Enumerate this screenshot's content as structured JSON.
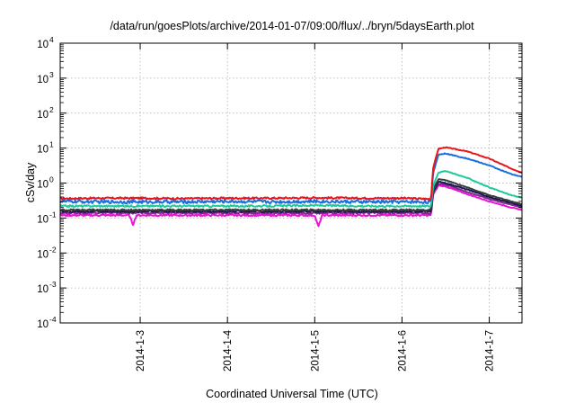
{
  "chart_data": {
    "type": "line",
    "title": "/data/run/goesPlots/archive/2014-01-07/09:00/flux/../bryn/5daysEarth.plot",
    "xlabel": "Coordinated Universal Time (UTC)",
    "ylabel": "cSv/day",
    "yscale": "log",
    "ylim": [
      0.0001,
      10000
    ],
    "xlim": [
      "2014-01-02 02:00",
      "2014-01-07 09:00"
    ],
    "grid": true,
    "y_ticks": [
      {
        "base": "10",
        "exp": "-4",
        "value": 0.0001
      },
      {
        "base": "10",
        "exp": "-3",
        "value": 0.001
      },
      {
        "base": "10",
        "exp": "-2",
        "value": 0.01
      },
      {
        "base": "10",
        "exp": "-1",
        "value": 0.1
      },
      {
        "base": "10",
        "exp": "0",
        "value": 1
      },
      {
        "base": "10",
        "exp": "1",
        "value": 10
      },
      {
        "base": "10",
        "exp": "2",
        "value": 100
      },
      {
        "base": "10",
        "exp": "3",
        "value": 1000
      },
      {
        "base": "10",
        "exp": "4",
        "value": 10000
      }
    ],
    "x_ticks": [
      {
        "label": "2014-1-3",
        "value": "2014-01-03 00:00"
      },
      {
        "label": "2014-1-4",
        "value": "2014-01-04 00:00"
      },
      {
        "label": "2014-1-5",
        "value": "2014-01-05 00:00"
      },
      {
        "label": "2014-1-6",
        "value": "2014-01-06 00:00"
      },
      {
        "label": "2014-1-7",
        "value": "2014-01-07 00:00"
      }
    ],
    "series": [
      {
        "color": "#e8141c",
        "points": [
          [
            "2014-01-02 02:00",
            0.36
          ],
          [
            "2014-01-02 12:00",
            0.37
          ],
          [
            "2014-01-03 00:00",
            0.37
          ],
          [
            "2014-01-03 12:00",
            0.36
          ],
          [
            "2014-01-04 00:00",
            0.37
          ],
          [
            "2014-01-04 12:00",
            0.37
          ],
          [
            "2014-01-05 00:00",
            0.38
          ],
          [
            "2014-01-05 12:00",
            0.37
          ],
          [
            "2014-01-06 00:00",
            0.37
          ],
          [
            "2014-01-06 08:00",
            0.35
          ],
          [
            "2014-01-06 08:30",
            2.5
          ],
          [
            "2014-01-06 10:00",
            9.5
          ],
          [
            "2014-01-06 12:00",
            10.5
          ],
          [
            "2014-01-06 18:00",
            8.0
          ],
          [
            "2014-01-07 00:00",
            5.0
          ],
          [
            "2014-01-07 06:00",
            2.6
          ],
          [
            "2014-01-07 09:00",
            2.0
          ]
        ]
      },
      {
        "color": "#1a6fe0",
        "points": [
          [
            "2014-01-02 02:00",
            0.3
          ],
          [
            "2014-01-02 12:00",
            0.29
          ],
          [
            "2014-01-03 00:00",
            0.29
          ],
          [
            "2014-01-03 12:00",
            0.29
          ],
          [
            "2014-01-04 00:00",
            0.3
          ],
          [
            "2014-01-04 12:00",
            0.29
          ],
          [
            "2014-01-05 00:00",
            0.3
          ],
          [
            "2014-01-05 12:00",
            0.29
          ],
          [
            "2014-01-06 00:00",
            0.29
          ],
          [
            "2014-01-06 08:00",
            0.29
          ],
          [
            "2014-01-06 08:30",
            1.8
          ],
          [
            "2014-01-06 10:00",
            6.5
          ],
          [
            "2014-01-06 12:00",
            7.0
          ],
          [
            "2014-01-06 18:00",
            5.0
          ],
          [
            "2014-01-07 00:00",
            3.2
          ],
          [
            "2014-01-07 06:00",
            1.8
          ],
          [
            "2014-01-07 09:00",
            1.5
          ]
        ]
      },
      {
        "color": "#1ec99a",
        "points": [
          [
            "2014-01-02 02:00",
            0.22
          ],
          [
            "2014-01-02 12:00",
            0.22
          ],
          [
            "2014-01-03 00:00",
            0.22
          ],
          [
            "2014-01-03 12:00",
            0.22
          ],
          [
            "2014-01-04 00:00",
            0.22
          ],
          [
            "2014-01-04 12:00",
            0.22
          ],
          [
            "2014-01-05 00:00",
            0.23
          ],
          [
            "2014-01-05 12:00",
            0.22
          ],
          [
            "2014-01-06 00:00",
            0.22
          ],
          [
            "2014-01-06 08:00",
            0.22
          ],
          [
            "2014-01-06 08:30",
            0.8
          ],
          [
            "2014-01-06 10:00",
            2.0
          ],
          [
            "2014-01-06 12:00",
            2.2
          ],
          [
            "2014-01-06 18:00",
            1.4
          ],
          [
            "2014-01-07 00:00",
            0.75
          ],
          [
            "2014-01-07 06:00",
            0.45
          ],
          [
            "2014-01-07 09:00",
            0.38
          ]
        ]
      },
      {
        "color": "#3d3d3d",
        "points": [
          [
            "2014-01-02 02:00",
            0.17
          ],
          [
            "2014-01-02 12:00",
            0.17
          ],
          [
            "2014-01-03 00:00",
            0.17
          ],
          [
            "2014-01-03 12:00",
            0.17
          ],
          [
            "2014-01-04 00:00",
            0.17
          ],
          [
            "2014-01-04 12:00",
            0.17
          ],
          [
            "2014-01-05 00:00",
            0.17
          ],
          [
            "2014-01-05 12:00",
            0.17
          ],
          [
            "2014-01-06 00:00",
            0.17
          ],
          [
            "2014-01-06 08:00",
            0.17
          ],
          [
            "2014-01-06 08:30",
            0.6
          ],
          [
            "2014-01-06 10:00",
            1.3
          ],
          [
            "2014-01-06 12:00",
            1.2
          ],
          [
            "2014-01-06 18:00",
            0.75
          ],
          [
            "2014-01-07 00:00",
            0.45
          ],
          [
            "2014-01-07 06:00",
            0.3
          ],
          [
            "2014-01-07 09:00",
            0.25
          ]
        ]
      },
      {
        "color": "#17174d",
        "points": [
          [
            "2014-01-02 02:00",
            0.155
          ],
          [
            "2014-01-02 12:00",
            0.155
          ],
          [
            "2014-01-03 00:00",
            0.155
          ],
          [
            "2014-01-03 12:00",
            0.155
          ],
          [
            "2014-01-04 00:00",
            0.155
          ],
          [
            "2014-01-04 12:00",
            0.155
          ],
          [
            "2014-01-05 00:00",
            0.155
          ],
          [
            "2014-01-05 12:00",
            0.155
          ],
          [
            "2014-01-06 00:00",
            0.155
          ],
          [
            "2014-01-06 08:00",
            0.155
          ],
          [
            "2014-01-06 08:30",
            0.55
          ],
          [
            "2014-01-06 10:00",
            1.1
          ],
          [
            "2014-01-06 12:00",
            1.0
          ],
          [
            "2014-01-06 18:00",
            0.65
          ],
          [
            "2014-01-07 00:00",
            0.4
          ],
          [
            "2014-01-07 06:00",
            0.27
          ],
          [
            "2014-01-07 09:00",
            0.22
          ]
        ]
      },
      {
        "color": "#7a2c8c",
        "points": [
          [
            "2014-01-02 02:00",
            0.14
          ],
          [
            "2014-01-02 12:00",
            0.14
          ],
          [
            "2014-01-03 00:00",
            0.14
          ],
          [
            "2014-01-03 12:00",
            0.14
          ],
          [
            "2014-01-04 00:00",
            0.14
          ],
          [
            "2014-01-04 12:00",
            0.14
          ],
          [
            "2014-01-05 00:00",
            0.14
          ],
          [
            "2014-01-05 12:00",
            0.14
          ],
          [
            "2014-01-06 00:00",
            0.14
          ],
          [
            "2014-01-06 08:00",
            0.14
          ],
          [
            "2014-01-06 08:30",
            0.5
          ],
          [
            "2014-01-06 10:00",
            0.95
          ],
          [
            "2014-01-06 12:00",
            0.9
          ],
          [
            "2014-01-06 18:00",
            0.55
          ],
          [
            "2014-01-07 00:00",
            0.35
          ],
          [
            "2014-01-07 06:00",
            0.24
          ],
          [
            "2014-01-07 09:00",
            0.2
          ]
        ]
      },
      {
        "color": "#ee12d6",
        "points": [
          [
            "2014-01-02 02:00",
            0.12
          ],
          [
            "2014-01-02 12:00",
            0.12
          ],
          [
            "2014-01-02 21:00",
            0.12
          ],
          [
            "2014-01-02 22:00",
            0.065
          ],
          [
            "2014-01-02 23:00",
            0.12
          ],
          [
            "2014-01-03 12:00",
            0.12
          ],
          [
            "2014-01-04 00:00",
            0.12
          ],
          [
            "2014-01-04 12:00",
            0.12
          ],
          [
            "2014-01-05 00:00",
            0.12
          ],
          [
            "2014-01-05 01:00",
            0.055
          ],
          [
            "2014-01-05 02:00",
            0.12
          ],
          [
            "2014-01-05 12:00",
            0.12
          ],
          [
            "2014-01-06 00:00",
            0.12
          ],
          [
            "2014-01-06 08:00",
            0.12
          ],
          [
            "2014-01-06 08:30",
            0.45
          ],
          [
            "2014-01-06 10:00",
            0.85
          ],
          [
            "2014-01-06 12:00",
            0.8
          ],
          [
            "2014-01-06 18:00",
            0.48
          ],
          [
            "2014-01-07 00:00",
            0.3
          ],
          [
            "2014-01-07 06:00",
            0.2
          ],
          [
            "2014-01-07 09:00",
            0.17
          ]
        ]
      }
    ]
  }
}
